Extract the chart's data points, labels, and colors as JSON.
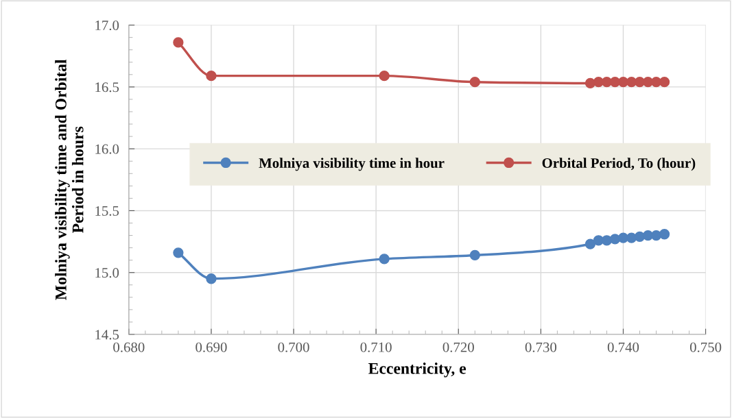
{
  "chart_data": {
    "type": "line",
    "xlabel": "Eccentricity, e",
    "ylabel": "Molniya visibility time and Orbital\nPeriod in hours",
    "series": [
      {
        "name": "Molniya visibility time in hour",
        "color": "#4f81bd",
        "x": [
          0.686,
          0.69,
          0.711,
          0.722,
          0.736,
          0.737,
          0.738,
          0.739,
          0.74,
          0.741,
          0.742,
          0.743,
          0.744,
          0.745
        ],
        "values": [
          15.16,
          14.95,
          15.11,
          15.14,
          15.23,
          15.26,
          15.26,
          15.27,
          15.28,
          15.28,
          15.29,
          15.3,
          15.3,
          15.31
        ]
      },
      {
        "name": "Orbital Period, To (hour)",
        "color": "#c0504d",
        "x": [
          0.686,
          0.69,
          0.711,
          0.722,
          0.736,
          0.737,
          0.738,
          0.739,
          0.74,
          0.741,
          0.742,
          0.743,
          0.744,
          0.745
        ],
        "values": [
          16.86,
          16.59,
          16.59,
          16.54,
          16.53,
          16.54,
          16.54,
          16.54,
          16.54,
          16.54,
          16.54,
          16.54,
          16.54,
          16.54
        ]
      }
    ],
    "xlim": [
      0.68,
      0.75
    ],
    "xticks": [
      {
        "value": 0.68,
        "label": "0.680"
      },
      {
        "value": 0.69,
        "label": "0.690"
      },
      {
        "value": 0.7,
        "label": "0.700"
      },
      {
        "value": 0.71,
        "label": "0.710"
      },
      {
        "value": 0.72,
        "label": "0.720"
      },
      {
        "value": 0.73,
        "label": "0.730"
      },
      {
        "value": 0.74,
        "label": "0.740"
      },
      {
        "value": 0.75,
        "label": "0.750"
      }
    ],
    "ylim": [
      14.5,
      17.0
    ],
    "yticks": [
      {
        "value": 14.5,
        "label": "14.5"
      },
      {
        "value": 15.0,
        "label": "15.0"
      },
      {
        "value": 15.5,
        "label": "15.5"
      },
      {
        "value": 16.0,
        "label": "16.0"
      },
      {
        "value": 16.5,
        "label": "16.5"
      },
      {
        "value": 17.0,
        "label": "17.0"
      }
    ],
    "grid": true,
    "legend": "center right",
    "marker": "circle",
    "line_style": "solid"
  }
}
